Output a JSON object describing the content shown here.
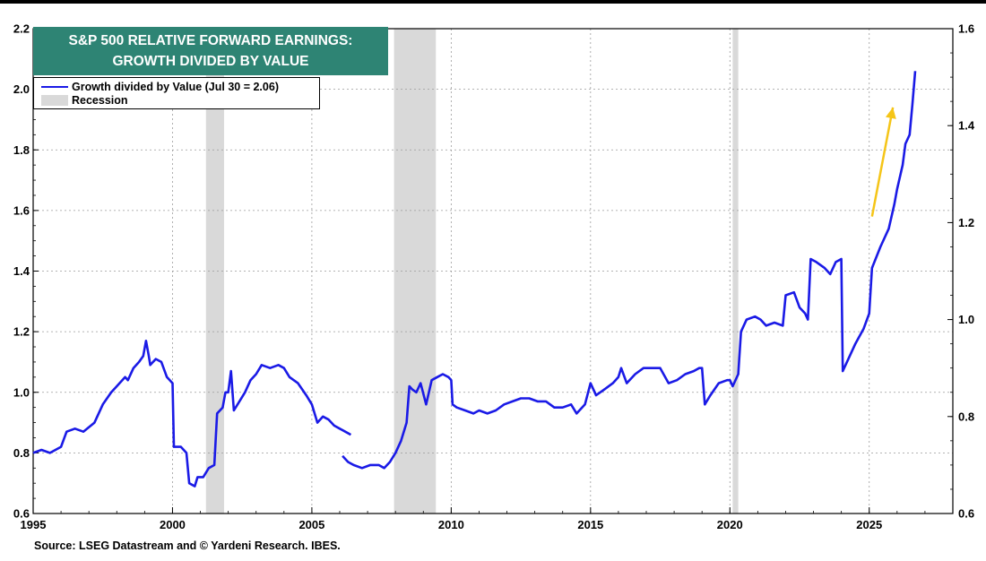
{
  "chart_data": {
    "type": "line",
    "title_lines": [
      "S&P 500 RELATIVE FORWARD EARNINGS:",
      "GROWTH DIVIDED BY VALUE"
    ],
    "source": "Source: LSEG Datastream and © Yardeni Research. IBES.",
    "xlim": [
      1995,
      2028
    ],
    "x_ticks": [
      1995,
      2000,
      2005,
      2010,
      2015,
      2020,
      2025
    ],
    "ylim_left": [
      0.6,
      2.2
    ],
    "y_ticks_left": [
      "0.6",
      "0.8",
      "1.0",
      "1.2",
      "1.4",
      "1.6",
      "1.8",
      "2.0",
      "2.2"
    ],
    "ylim_right": [
      0.6,
      1.6
    ],
    "y_ticks_right": [
      "0.6",
      "0.8",
      "1.0",
      "1.2",
      "1.4",
      "1.6"
    ],
    "grid": true,
    "legend": [
      {
        "label": "Growth divided by Value (Jul 30 = 2.06)",
        "type": "line",
        "color": "#1a1ae6"
      },
      {
        "label": "Recession",
        "type": "band",
        "color": "#d9d9d9"
      }
    ],
    "legend_placement": "top-left",
    "colors": {
      "series": "#1a1ae6",
      "recession": "#d9d9d9",
      "title_bg": "#2e8474",
      "arrow": "#f5c518"
    },
    "recessions": [
      [
        2001.2,
        2001.85
      ],
      [
        2007.95,
        2009.45
      ],
      [
        2020.1,
        2020.3
      ]
    ],
    "series": [
      {
        "name": "Growth divided by Value (Jul 30 = 2.06)",
        "segments": [
          [
            [
              1995.0,
              0.8
            ],
            [
              1995.3,
              0.81
            ],
            [
              1995.6,
              0.8
            ],
            [
              1996.0,
              0.82
            ],
            [
              1996.2,
              0.87
            ],
            [
              1996.5,
              0.88
            ],
            [
              1996.8,
              0.87
            ],
            [
              1997.2,
              0.9
            ],
            [
              1997.5,
              0.96
            ],
            [
              1997.8,
              1.0
            ],
            [
              1998.0,
              1.02
            ],
            [
              1998.3,
              1.05
            ],
            [
              1998.4,
              1.04
            ],
            [
              1998.6,
              1.08
            ],
            [
              1998.8,
              1.1
            ],
            [
              1998.95,
              1.12
            ],
            [
              1999.05,
              1.17
            ],
            [
              1999.15,
              1.12
            ],
            [
              1999.2,
              1.09
            ],
            [
              1999.4,
              1.11
            ],
            [
              1999.6,
              1.1
            ],
            [
              1999.8,
              1.05
            ],
            [
              2000.0,
              1.03
            ],
            [
              2000.05,
              0.82
            ],
            [
              2000.3,
              0.82
            ],
            [
              2000.5,
              0.8
            ],
            [
              2000.6,
              0.7
            ],
            [
              2000.8,
              0.69
            ],
            [
              2000.9,
              0.72
            ],
            [
              2001.1,
              0.72
            ],
            [
              2001.3,
              0.75
            ],
            [
              2001.5,
              0.76
            ],
            [
              2001.6,
              0.93
            ],
            [
              2001.8,
              0.95
            ],
            [
              2001.9,
              1.0
            ],
            [
              2002.0,
              1.0
            ],
            [
              2002.1,
              1.07
            ],
            [
              2002.2,
              0.94
            ],
            [
              2002.4,
              0.97
            ],
            [
              2002.6,
              1.0
            ],
            [
              2002.8,
              1.04
            ],
            [
              2003.0,
              1.06
            ],
            [
              2003.2,
              1.09
            ],
            [
              2003.5,
              1.08
            ],
            [
              2003.8,
              1.09
            ],
            [
              2004.0,
              1.08
            ],
            [
              2004.2,
              1.05
            ],
            [
              2004.5,
              1.03
            ],
            [
              2004.8,
              0.99
            ],
            [
              2005.0,
              0.96
            ],
            [
              2005.2,
              0.9
            ],
            [
              2005.4,
              0.92
            ],
            [
              2005.6,
              0.91
            ],
            [
              2005.8,
              0.89
            ],
            [
              2006.0,
              0.88
            ],
            [
              2006.2,
              0.87
            ],
            [
              2006.4,
              0.86
            ]
          ],
          [
            [
              2006.1,
              0.79
            ],
            [
              2006.3,
              0.77
            ],
            [
              2006.5,
              0.76
            ],
            [
              2006.8,
              0.75
            ],
            [
              2007.1,
              0.76
            ],
            [
              2007.4,
              0.76
            ],
            [
              2007.6,
              0.75
            ],
            [
              2007.8,
              0.77
            ],
            [
              2008.0,
              0.8
            ],
            [
              2008.2,
              0.84
            ],
            [
              2008.4,
              0.9
            ],
            [
              2008.5,
              1.02
            ],
            [
              2008.6,
              1.01
            ],
            [
              2008.75,
              1.0
            ],
            [
              2008.9,
              1.03
            ],
            [
              2009.1,
              0.96
            ],
            [
              2009.3,
              1.04
            ],
            [
              2009.5,
              1.05
            ],
            [
              2009.7,
              1.06
            ],
            [
              2009.9,
              1.05
            ],
            [
              2010.0,
              1.04
            ],
            [
              2010.05,
              0.96
            ],
            [
              2010.2,
              0.95
            ],
            [
              2010.5,
              0.94
            ],
            [
              2010.8,
              0.93
            ],
            [
              2011.0,
              0.94
            ],
            [
              2011.3,
              0.93
            ],
            [
              2011.6,
              0.94
            ],
            [
              2011.9,
              0.96
            ],
            [
              2012.2,
              0.97
            ],
            [
              2012.5,
              0.98
            ],
            [
              2012.8,
              0.98
            ],
            [
              2013.1,
              0.97
            ],
            [
              2013.4,
              0.97
            ],
            [
              2013.7,
              0.95
            ],
            [
              2014.0,
              0.95
            ],
            [
              2014.3,
              0.96
            ],
            [
              2014.5,
              0.93
            ],
            [
              2014.8,
              0.96
            ],
            [
              2015.0,
              1.03
            ],
            [
              2015.2,
              0.99
            ],
            [
              2015.5,
              1.01
            ],
            [
              2015.8,
              1.03
            ],
            [
              2016.0,
              1.05
            ],
            [
              2016.1,
              1.08
            ],
            [
              2016.3,
              1.03
            ],
            [
              2016.6,
              1.06
            ],
            [
              2016.9,
              1.08
            ],
            [
              2017.2,
              1.08
            ],
            [
              2017.5,
              1.08
            ],
            [
              2017.8,
              1.03
            ],
            [
              2018.1,
              1.04
            ],
            [
              2018.4,
              1.06
            ],
            [
              2018.7,
              1.07
            ],
            [
              2018.9,
              1.08
            ],
            [
              2019.0,
              1.08
            ],
            [
              2019.1,
              0.96
            ],
            [
              2019.3,
              0.99
            ],
            [
              2019.6,
              1.03
            ],
            [
              2019.9,
              1.04
            ],
            [
              2020.0,
              1.04
            ],
            [
              2020.1,
              1.02
            ],
            [
              2020.3,
              1.06
            ],
            [
              2020.4,
              1.2
            ],
            [
              2020.6,
              1.24
            ],
            [
              2020.9,
              1.25
            ],
            [
              2021.1,
              1.24
            ],
            [
              2021.3,
              1.22
            ],
            [
              2021.6,
              1.23
            ],
            [
              2021.9,
              1.22
            ],
            [
              2022.0,
              1.32
            ],
            [
              2022.3,
              1.33
            ],
            [
              2022.5,
              1.28
            ],
            [
              2022.7,
              1.26
            ],
            [
              2022.8,
              1.24
            ],
            [
              2022.9,
              1.44
            ],
            [
              2023.1,
              1.43
            ],
            [
              2023.4,
              1.41
            ],
            [
              2023.6,
              1.39
            ],
            [
              2023.8,
              1.43
            ],
            [
              2024.0,
              1.44
            ],
            [
              2024.05,
              1.07
            ],
            [
              2024.2,
              1.1
            ],
            [
              2024.5,
              1.16
            ],
            [
              2024.8,
              1.21
            ],
            [
              2025.0,
              1.26
            ],
            [
              2025.1,
              1.41
            ],
            [
              2025.4,
              1.48
            ],
            [
              2025.7,
              1.54
            ],
            [
              2025.9,
              1.62
            ],
            [
              2026.0,
              1.67
            ],
            [
              2026.2,
              1.75
            ],
            [
              2026.3,
              1.82
            ],
            [
              2026.45,
              1.85
            ],
            [
              2026.55,
              1.95
            ],
            [
              2026.65,
              2.06
            ]
          ]
        ]
      }
    ],
    "annotations": [
      {
        "type": "arrow",
        "from": [
          2025.1,
          1.58
        ],
        "to": [
          2025.85,
          1.94
        ],
        "color": "#f5c518"
      }
    ]
  }
}
